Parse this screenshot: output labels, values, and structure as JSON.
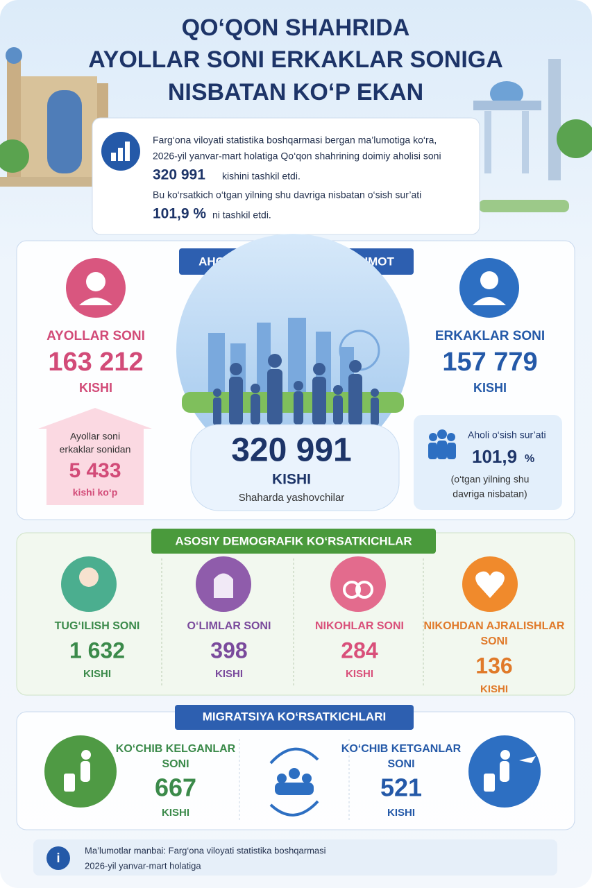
{
  "header": {
    "title_lines": [
      "QO‘QON SHAHRIDA",
      "AYOLLAR SONI ERKAKLAR SONIGA",
      "NISBATAN KO‘P EKAN"
    ]
  },
  "intro": {
    "line1": "Farg‘ona viloyati statistika boshqarmasi bergan ma’lumotiga ko‘ra,",
    "line2": "2026-yil yanvar-mart holatiga Qo‘qon shahrining doimiy aholisi soni",
    "population": "320 991",
    "population_suffix": "kishini tashkil etdi.",
    "line3": "Bu ko‘rsatkich o‘tgan yilning shu davriga nisbatan o‘sish sur’ati",
    "growth": "101,9 %",
    "growth_suffix": "ni tashkil etdi."
  },
  "population": {
    "title": "AHOLI SONI BO‘YICHA MA’LUMOT",
    "women": {
      "label": "AYOLLAR SONI",
      "value": "163 212",
      "unit": "KISHI"
    },
    "men": {
      "label": "ERKAKLAR SONI",
      "value": "157 779",
      "unit": "KISHI"
    },
    "total": {
      "value": "320 991",
      "unit": "KISHI",
      "caption": "Shaharda yashovchilar"
    },
    "difference": {
      "lines": [
        "Ayollar soni",
        "erkaklar sonidan"
      ],
      "value": "5 433",
      "unit": "kishi ko‘p"
    },
    "growth": {
      "label": "Aholi o‘sish sur’ati",
      "value": "101,9",
      "unit": "%",
      "lines": [
        "(o‘tgan yilning shu",
        "davriga nisbatan)"
      ]
    }
  },
  "demographics": {
    "title": "ASOSIY DEMOGRAFIK KO‘RSATKICHLAR",
    "items": [
      {
        "label": [
          "TUG‘ILISH SONI"
        ],
        "value": "1 632",
        "unit": "KISHI"
      },
      {
        "label": [
          "O‘LIMLAR SONI"
        ],
        "value": "398",
        "unit": "KISHI"
      },
      {
        "label": [
          "NIKOHLAR SONI"
        ],
        "value": "284",
        "unit": "KISHI"
      },
      {
        "label": [
          "NIKOHDAN AJRALISHLAR",
          "SONI"
        ],
        "value": "136",
        "unit": "KISHI"
      }
    ]
  },
  "migration": {
    "title": "MIGRATSIYA KO‘RSATKICHLARI",
    "items": [
      {
        "label": [
          "KO‘CHIB KELGANLAR",
          "SONI"
        ],
        "value": "667",
        "unit": "KISHI"
      },
      {
        "label": [
          "KO‘CHIB KETGANLAR",
          "SONI"
        ],
        "value": "521",
        "unit": "KISHI"
      }
    ]
  },
  "footer": {
    "lines": [
      "Ma’lumotlar manbai: Farg‘ona viloyati statistika boshqarmasi",
      "2026-yil yanvar-mart holatiga"
    ]
  }
}
